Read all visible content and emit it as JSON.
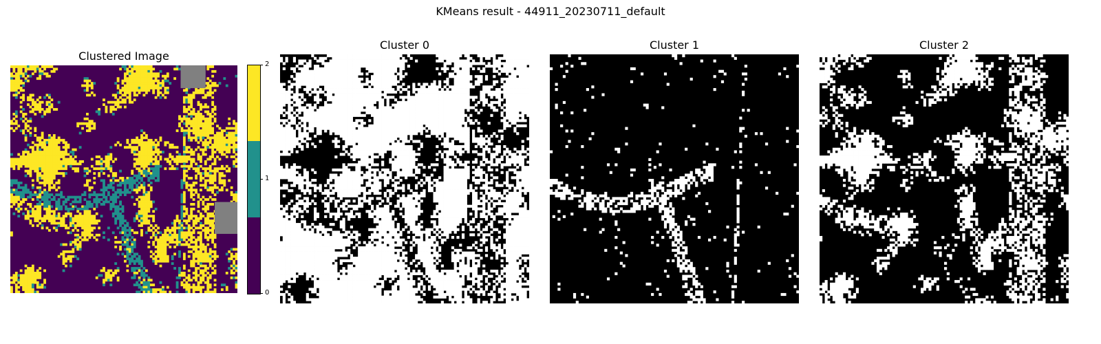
{
  "suptitle": "KMeans result - 44911_20230711_default",
  "panels": {
    "clustered": {
      "title": "Clustered Image"
    },
    "cluster0": {
      "title": "Cluster 0"
    },
    "cluster1": {
      "title": "Cluster 1"
    },
    "cluster2": {
      "title": "Cluster 2"
    }
  },
  "colorbar": {
    "ticks": [
      "0",
      "1",
      "2"
    ],
    "colors": {
      "c0": "#440154",
      "c1": "#21918c",
      "c2": "#fde725"
    }
  },
  "colors": {
    "nodata": "#808080",
    "mask_on": "#ffffff",
    "mask_off": "#000000"
  }
}
